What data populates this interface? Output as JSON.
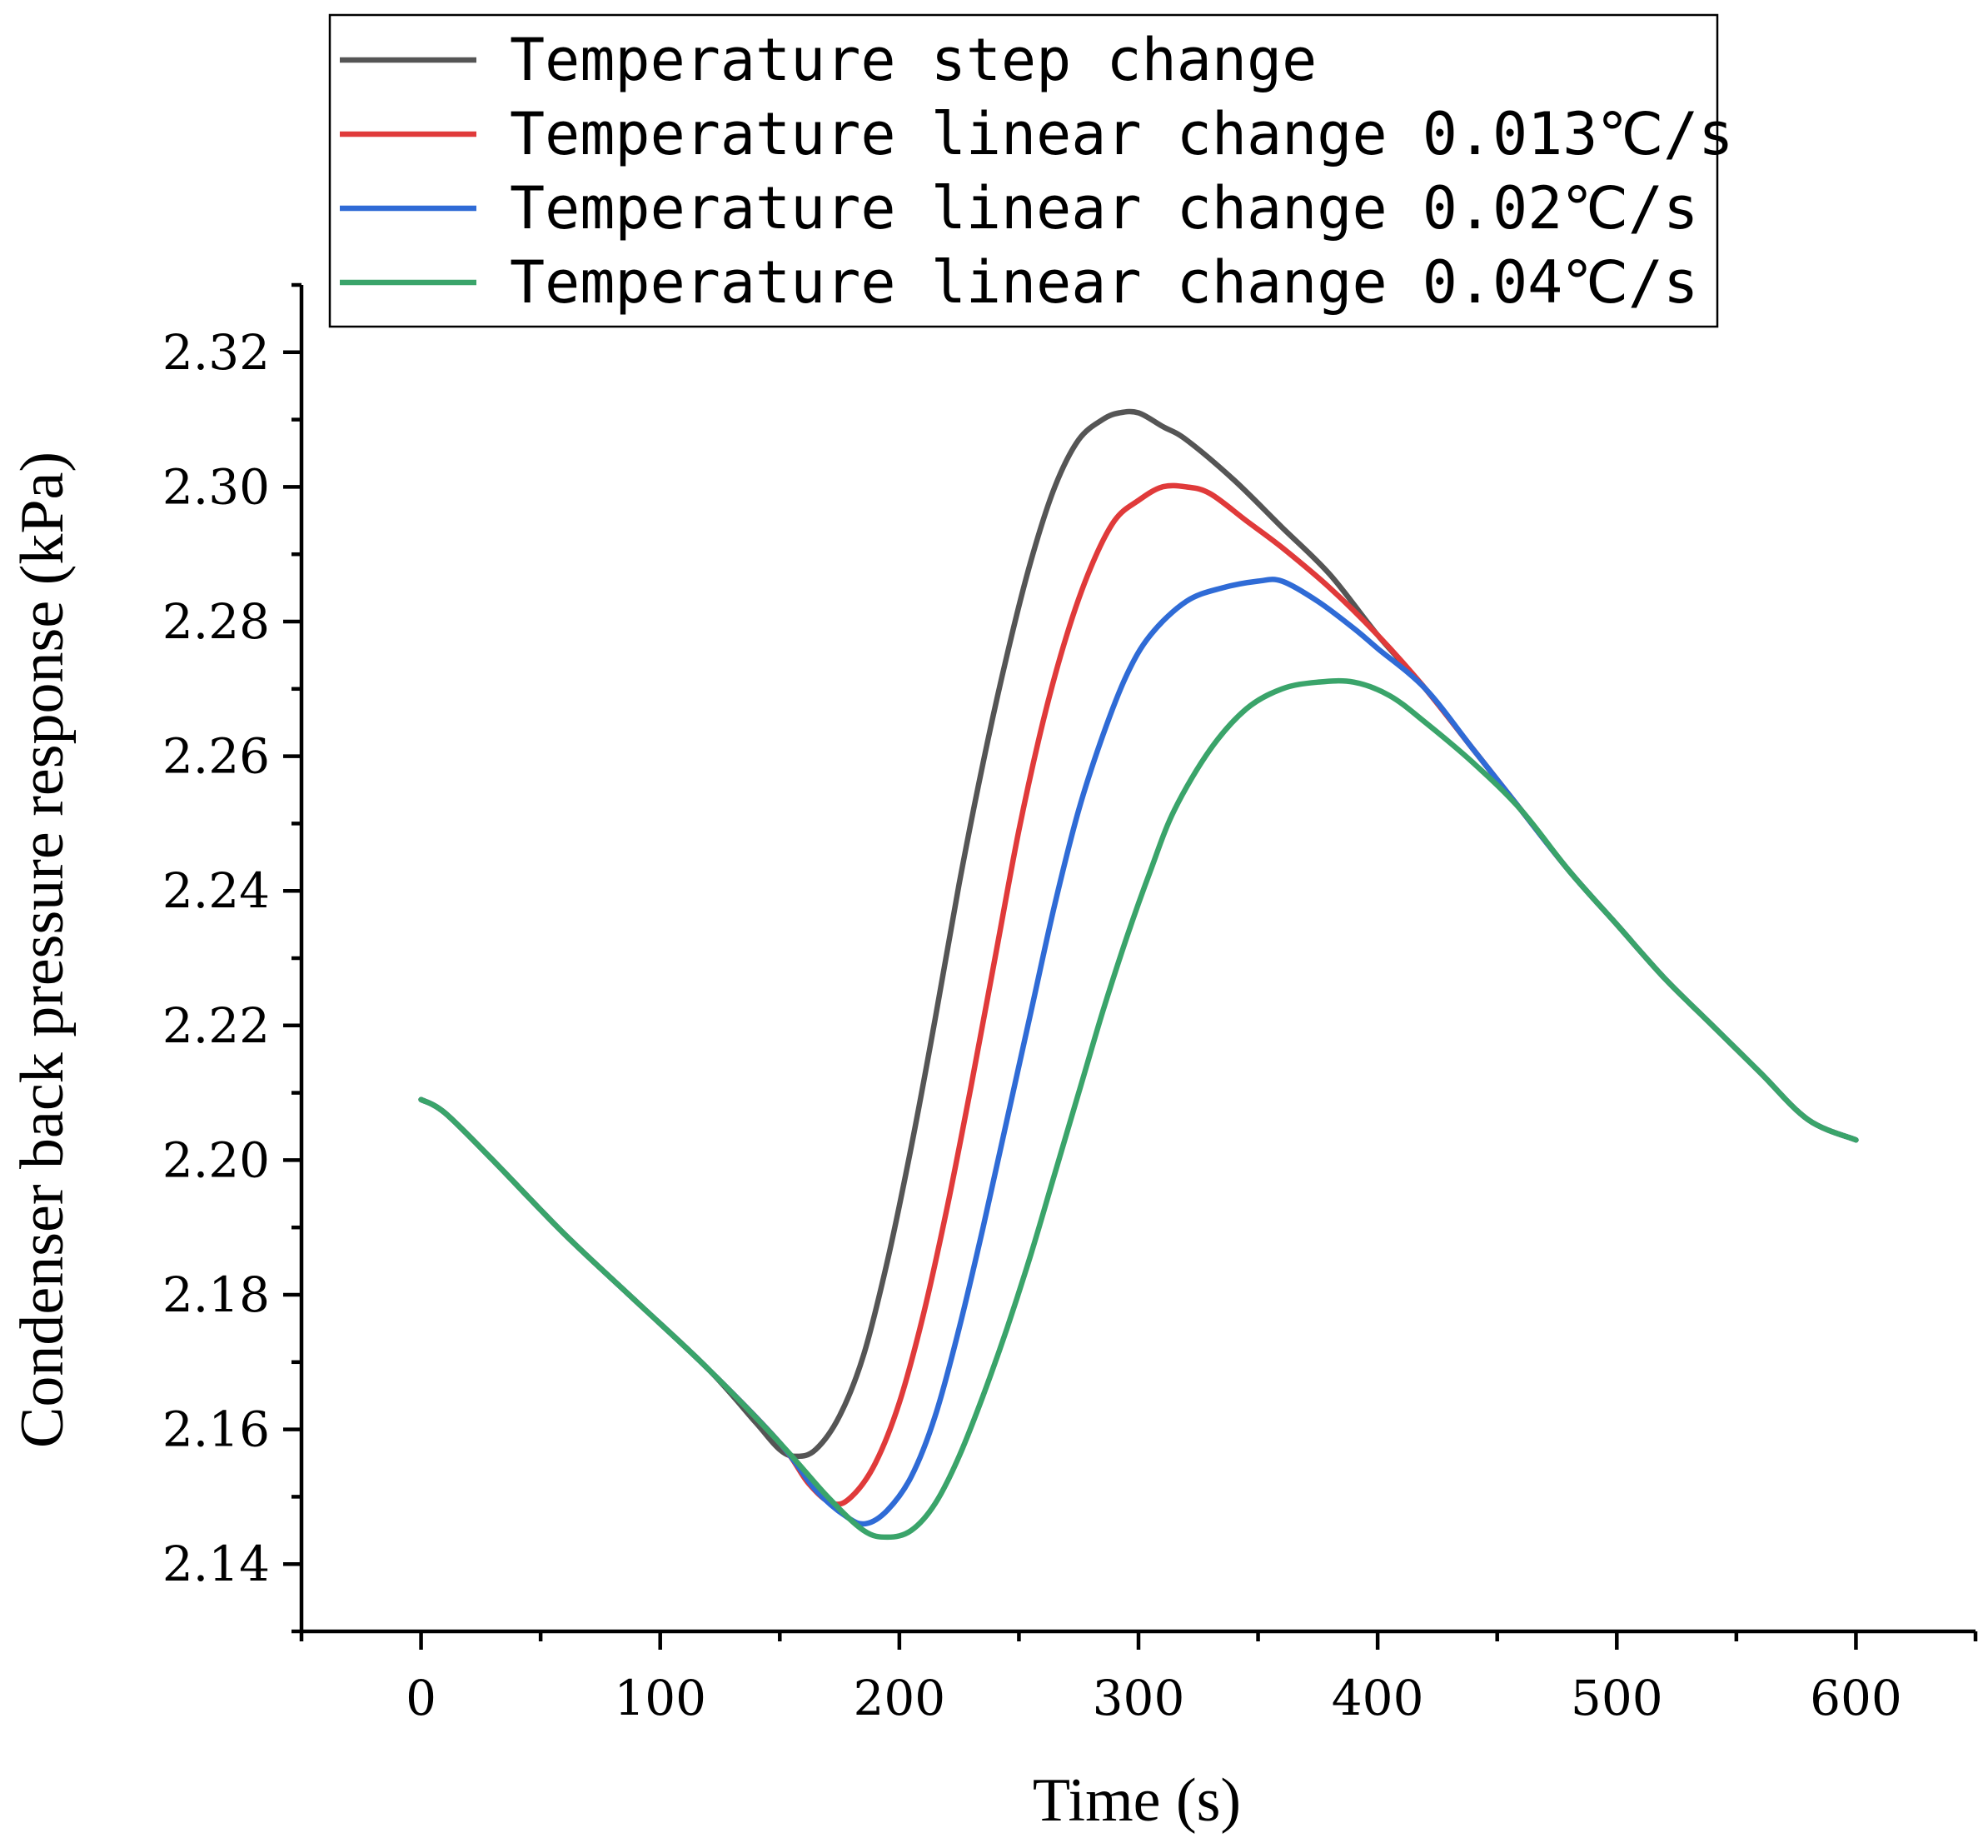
{
  "chart_data": {
    "type": "line",
    "xlabel": "Time (s)",
    "ylabel": "Condenser back pressure response (kPa)",
    "xlim": [
      -50,
      650
    ],
    "ylim": [
      2.13,
      2.33
    ],
    "xticks": [
      0,
      100,
      200,
      300,
      400,
      500,
      600
    ],
    "xtick_labels": [
      "0",
      "100",
      "200",
      "300",
      "400",
      "500",
      "600"
    ],
    "yticks": [
      2.14,
      2.16,
      2.18,
      2.2,
      2.22,
      2.24,
      2.26,
      2.28,
      2.3,
      2.32
    ],
    "ytick_labels": [
      "2.14",
      "2.16",
      "2.18",
      "2.20",
      "2.22",
      "2.24",
      "2.26",
      "2.28",
      "2.30",
      "2.32"
    ],
    "legend_position": "top",
    "series": [
      {
        "name": "Temperature step change",
        "color": "#555555",
        "points": [
          [
            0,
            2.209
          ],
          [
            10,
            2.207
          ],
          [
            30,
            2.2
          ],
          [
            60,
            2.189
          ],
          [
            90,
            2.179
          ],
          [
            120,
            2.169
          ],
          [
            140,
            2.161
          ],
          [
            150,
            2.157
          ],
          [
            157,
            2.156
          ],
          [
            165,
            2.157
          ],
          [
            175,
            2.162
          ],
          [
            185,
            2.171
          ],
          [
            195,
            2.185
          ],
          [
            205,
            2.202
          ],
          [
            215,
            2.221
          ],
          [
            225,
            2.241
          ],
          [
            235,
            2.259
          ],
          [
            245,
            2.275
          ],
          [
            255,
            2.289
          ],
          [
            265,
            2.3
          ],
          [
            275,
            2.307
          ],
          [
            285,
            2.31
          ],
          [
            292,
            2.311
          ],
          [
            300,
            2.311
          ],
          [
            310,
            2.309
          ],
          [
            320,
            2.307
          ],
          [
            340,
            2.301
          ],
          [
            360,
            2.294
          ],
          [
            380,
            2.287
          ],
          [
            400,
            2.278
          ],
          [
            420,
            2.27
          ],
          [
            440,
            2.261
          ],
          [
            460,
            2.252
          ],
          [
            480,
            2.243
          ],
          [
            500,
            2.235
          ],
          [
            520,
            2.227
          ],
          [
            540,
            2.22
          ],
          [
            560,
            2.213
          ],
          [
            580,
            2.206
          ],
          [
            600,
            2.203
          ]
        ]
      },
      {
        "name": "Temperature linear change 0.013℃/s",
        "color": "#e03a3a",
        "points": [
          [
            0,
            2.209
          ],
          [
            10,
            2.207
          ],
          [
            30,
            2.2
          ],
          [
            60,
            2.189
          ],
          [
            90,
            2.179
          ],
          [
            120,
            2.169
          ],
          [
            150,
            2.158
          ],
          [
            162,
            2.152
          ],
          [
            172,
            2.149
          ],
          [
            180,
            2.15
          ],
          [
            190,
            2.155
          ],
          [
            200,
            2.164
          ],
          [
            210,
            2.177
          ],
          [
            220,
            2.193
          ],
          [
            230,
            2.211
          ],
          [
            240,
            2.23
          ],
          [
            250,
            2.249
          ],
          [
            260,
            2.265
          ],
          [
            270,
            2.278
          ],
          [
            280,
            2.288
          ],
          [
            290,
            2.295
          ],
          [
            300,
            2.298
          ],
          [
            310,
            2.3
          ],
          [
            320,
            2.3
          ],
          [
            330,
            2.299
          ],
          [
            345,
            2.295
          ],
          [
            360,
            2.291
          ],
          [
            380,
            2.285
          ],
          [
            400,
            2.278
          ],
          [
            420,
            2.27
          ],
          [
            440,
            2.261
          ],
          [
            460,
            2.252
          ],
          [
            480,
            2.243
          ],
          [
            500,
            2.235
          ],
          [
            520,
            2.227
          ],
          [
            540,
            2.22
          ],
          [
            560,
            2.213
          ],
          [
            580,
            2.206
          ],
          [
            600,
            2.203
          ]
        ]
      },
      {
        "name": "Temperature linear change 0.02℃/s",
        "color": "#2f6bd6",
        "points": [
          [
            0,
            2.209
          ],
          [
            10,
            2.207
          ],
          [
            30,
            2.2
          ],
          [
            60,
            2.189
          ],
          [
            90,
            2.179
          ],
          [
            120,
            2.169
          ],
          [
            150,
            2.158
          ],
          [
            165,
            2.151
          ],
          [
            178,
            2.147
          ],
          [
            186,
            2.146
          ],
          [
            195,
            2.148
          ],
          [
            205,
            2.153
          ],
          [
            215,
            2.162
          ],
          [
            225,
            2.175
          ],
          [
            235,
            2.19
          ],
          [
            245,
            2.206
          ],
          [
            255,
            2.222
          ],
          [
            265,
            2.238
          ],
          [
            275,
            2.252
          ],
          [
            285,
            2.263
          ],
          [
            295,
            2.272
          ],
          [
            305,
            2.278
          ],
          [
            320,
            2.283
          ],
          [
            335,
            2.285
          ],
          [
            350,
            2.286
          ],
          [
            360,
            2.286
          ],
          [
            375,
            2.283
          ],
          [
            390,
            2.279
          ],
          [
            400,
            2.276
          ],
          [
            420,
            2.27
          ],
          [
            440,
            2.261
          ],
          [
            460,
            2.252
          ],
          [
            480,
            2.243
          ],
          [
            500,
            2.235
          ],
          [
            520,
            2.227
          ],
          [
            540,
            2.22
          ],
          [
            560,
            2.213
          ],
          [
            580,
            2.206
          ],
          [
            600,
            2.203
          ]
        ]
      },
      {
        "name": "Temperature linear change 0.04℃/s",
        "color": "#3aa46a",
        "points": [
          [
            0,
            2.209
          ],
          [
            10,
            2.207
          ],
          [
            30,
            2.2
          ],
          [
            60,
            2.189
          ],
          [
            90,
            2.179
          ],
          [
            120,
            2.169
          ],
          [
            150,
            2.158
          ],
          [
            170,
            2.15
          ],
          [
            185,
            2.145
          ],
          [
            195,
            2.144
          ],
          [
            205,
            2.145
          ],
          [
            215,
            2.149
          ],
          [
            225,
            2.156
          ],
          [
            235,
            2.165
          ],
          [
            245,
            2.175
          ],
          [
            255,
            2.186
          ],
          [
            265,
            2.198
          ],
          [
            275,
            2.21
          ],
          [
            285,
            2.222
          ],
          [
            295,
            2.233
          ],
          [
            305,
            2.243
          ],
          [
            315,
            2.252
          ],
          [
            330,
            2.261
          ],
          [
            345,
            2.267
          ],
          [
            360,
            2.27
          ],
          [
            375,
            2.271
          ],
          [
            390,
            2.271
          ],
          [
            405,
            2.269
          ],
          [
            420,
            2.265
          ],
          [
            440,
            2.259
          ],
          [
            460,
            2.252
          ],
          [
            480,
            2.243
          ],
          [
            500,
            2.235
          ],
          [
            520,
            2.227
          ],
          [
            540,
            2.22
          ],
          [
            560,
            2.213
          ],
          [
            580,
            2.206
          ],
          [
            600,
            2.203
          ]
        ]
      }
    ]
  }
}
